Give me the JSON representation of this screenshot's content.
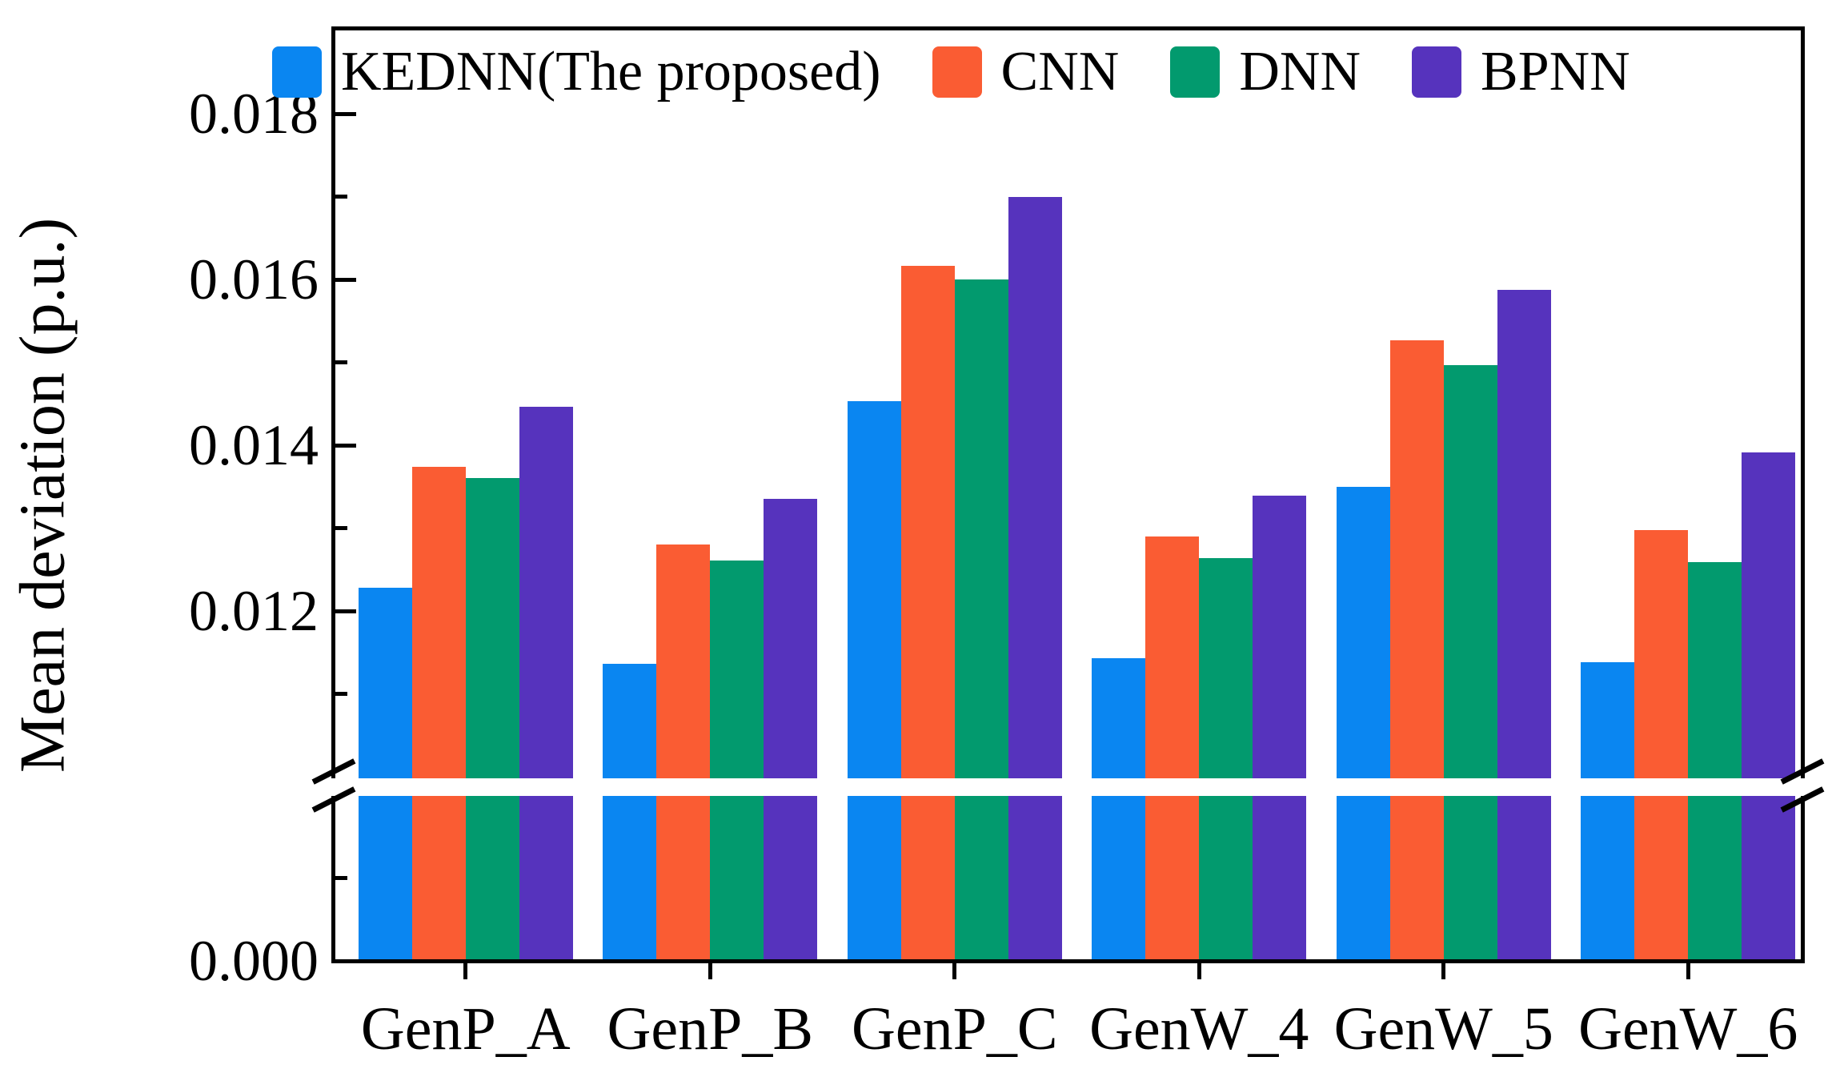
{
  "chart_data": {
    "type": "bar",
    "title": "",
    "ylabel": "Mean deviation (p.u.)",
    "xlabel": "",
    "categories": [
      "GenP_A",
      "GenP_B",
      "GenP_C",
      "GenW_4",
      "GenW_5",
      "GenW_6"
    ],
    "series": [
      {
        "name": "KEDNN(The proposed)",
        "color": "#0a86f1",
        "values": [
          0.01228,
          0.01136,
          0.01453,
          0.01143,
          0.0135,
          0.01138
        ]
      },
      {
        "name": "CNN",
        "color": "#fa5c33",
        "values": [
          0.01374,
          0.0128,
          0.01616,
          0.0129,
          0.01527,
          0.01298
        ]
      },
      {
        "name": "DNN",
        "color": "#029a6e",
        "values": [
          0.0136,
          0.01261,
          0.016,
          0.01264,
          0.01497,
          0.01259
        ]
      },
      {
        "name": "BPNN",
        "color": "#5633bd",
        "values": [
          0.01446,
          0.01335,
          0.017,
          0.01339,
          0.01587,
          0.01391
        ]
      }
    ],
    "yticks_major": [
      0.012,
      0.014,
      0.016,
      0.018
    ],
    "ytick_labels": [
      "0.012",
      "0.014",
      "0.016",
      "0.018"
    ],
    "yticks_minor": [
      0.011,
      0.013,
      0.015,
      0.017
    ],
    "baseline_label": "0.000",
    "axis_break": {
      "lower": 0.0,
      "upper": 0.01
    },
    "ylim_upper_segment": [
      0.01,
      0.0187
    ],
    "grid": false,
    "legend_position": "top-left-inside",
    "axis_color": "#000000"
  }
}
